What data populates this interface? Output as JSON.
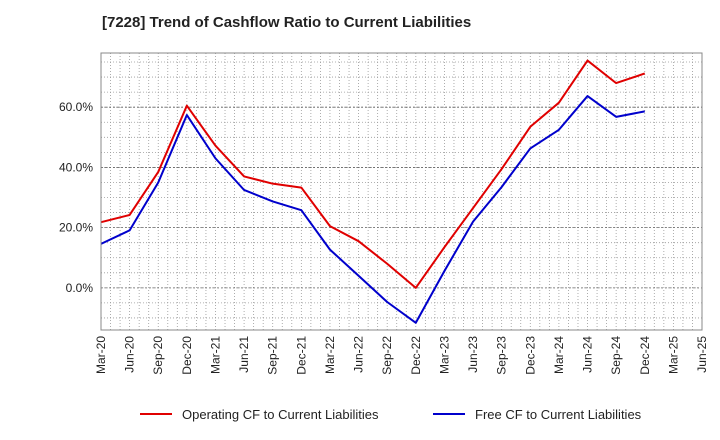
{
  "chart_data": {
    "type": "line",
    "title": "[7228]  Trend of Cashflow Ratio to Current Liabilities",
    "xlabel": "",
    "ylabel": "",
    "x": [
      "Mar-20",
      "Jun-20",
      "Sep-20",
      "Dec-20",
      "Mar-21",
      "Jun-21",
      "Sep-21",
      "Dec-21",
      "Mar-22",
      "Jun-22",
      "Sep-22",
      "Dec-22",
      "Mar-23",
      "Jun-23",
      "Sep-23",
      "Dec-23",
      "Mar-24",
      "Jun-24",
      "Sep-24",
      "Dec-24",
      "Mar-25",
      "Jun-25"
    ],
    "x_tick_labels": [
      "Mar-20",
      "Jun-20",
      "Sep-20",
      "Dec-20",
      "Mar-21",
      "Jun-21",
      "Sep-21",
      "Dec-21",
      "Mar-22",
      "Jun-22",
      "Sep-22",
      "Dec-22",
      "Mar-23",
      "Jun-23",
      "Sep-23",
      "Dec-23",
      "Mar-24",
      "Jun-24",
      "Sep-24",
      "Dec-24",
      "Mar-25",
      "Jun-25"
    ],
    "y_ticks": [
      0,
      20,
      40,
      60
    ],
    "y_tick_labels": [
      "0.0%",
      "20.0%",
      "40.0%",
      "60.0%"
    ],
    "ylim": [
      -14,
      78
    ],
    "grid": true,
    "legend_position": "bottom",
    "series": [
      {
        "name": "Operating CF to Current Liabilities",
        "color": "#e00000",
        "values": [
          21.8,
          24.2,
          38.5,
          60.5,
          47.2,
          37.0,
          34.6,
          33.3,
          20.5,
          15.5,
          8.0,
          0.0,
          13.5,
          26.5,
          39.5,
          53.5,
          61.5,
          75.5,
          68.0,
          71.2,
          null,
          null
        ]
      },
      {
        "name": "Free CF to Current Liabilities",
        "color": "#0000cc",
        "values": [
          14.6,
          19.1,
          35.0,
          57.4,
          43.0,
          32.5,
          28.7,
          25.8,
          12.7,
          4.0,
          -4.7,
          -11.6,
          5.6,
          22.0,
          33.5,
          46.3,
          52.5,
          63.7,
          56.8,
          58.6,
          null,
          null
        ]
      }
    ]
  }
}
